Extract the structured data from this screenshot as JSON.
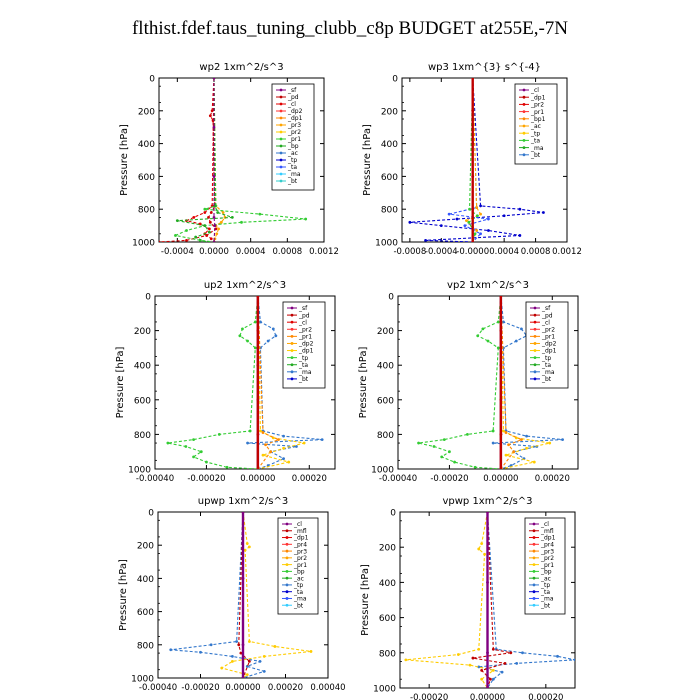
{
  "page_title": "flthist.fdef.taus_tuning_clubb_c8p  BUDGET at255E,-7N",
  "chart_data": [
    {
      "type": "line",
      "title": "wp2   1xm^2/s^3",
      "ylabel": "Pressure [hPa]",
      "xlim": [
        -0.0006,
        0.0012
      ],
      "ylim": [
        1000,
        0
      ],
      "xticks": [
        -0.0004,
        0.0,
        0.0004,
        0.0008,
        0.0012
      ],
      "xticklabels": [
        "-0.0004",
        "0.0000",
        "0.0004",
        "0.0008",
        "0.0012"
      ],
      "yticks": [
        0,
        200,
        400,
        600,
        800,
        1000
      ],
      "legend_position": "top-right",
      "legend": [
        "_sf",
        "_pd",
        "_cl",
        "_dp2",
        "_dp1",
        "_pr3",
        "_pr2",
        "_pr1",
        "_bp",
        "_ac",
        "_tp",
        "_ta",
        "_ma",
        "_bt"
      ],
      "series": [
        {
          "name": "_dp1",
          "color": "#d00000",
          "pressure": [
            0,
            200,
            230,
            260,
            600,
            780,
            820,
            850,
            880,
            920,
            960,
            990,
            1000
          ],
          "values": [
            0,
            -2e-05,
            -4e-05,
            -1e-05,
            0,
            1e-05,
            -3e-05,
            -6e-05,
            -4e-05,
            2e-05,
            -8e-05,
            -0.0003,
            -0.0006
          ]
        },
        {
          "name": "_pr1",
          "color": "#ffa500",
          "pressure": [
            0,
            780,
            820,
            850,
            880,
            900,
            920,
            950,
            980,
            1000
          ],
          "values": [
            0,
            2e-05,
            0.0001,
            0.00012,
            8e-05,
            2e-05,
            5e-05,
            3e-05,
            1e-05,
            0
          ]
        },
        {
          "name": "_dp2",
          "color": "#e00000",
          "pressure": [
            0,
            780,
            820,
            850,
            870,
            890,
            920,
            950,
            980,
            1000
          ],
          "values": [
            0,
            -2e-05,
            -0.0001,
            -0.00022,
            -0.0003,
            -0.00015,
            -5e-05,
            -0.0001,
            -3e-05,
            0
          ]
        },
        {
          "name": "_bp",
          "color": "#33cc33",
          "pressure": [
            0,
            780,
            800,
            830,
            860,
            880,
            900,
            930,
            960,
            990,
            1000
          ],
          "values": [
            0,
            2e-05,
            -0.0001,
            0.0005,
            0.001,
            0.0003,
            -0.0001,
            -0.0003,
            -0.00042,
            -0.00015,
            0
          ]
        },
        {
          "name": "_ac",
          "color": "#22aa22",
          "pressure": [
            0,
            780,
            820,
            850,
            870,
            900,
            940,
            970,
            1000
          ],
          "values": [
            0,
            1e-05,
            4e-05,
            0.0002,
            -0.0004,
            -0.0001,
            -5e-05,
            -0.0002,
            -0.0001
          ]
        },
        {
          "name": "_sf",
          "color": "#800080",
          "pressure": [
            0,
            300,
            600,
            850,
            900,
            1000
          ],
          "values": [
            0,
            0,
            0,
            0,
            1e-05,
            0
          ]
        }
      ]
    },
    {
      "type": "line",
      "title": "wp3   1xm^{3} s^{-4}",
      "ylabel": "Pressure [hPa]",
      "xlim": [
        -0.0009,
        0.0012
      ],
      "ylim": [
        1000,
        0
      ],
      "xticks": [
        -0.0008,
        -0.0004,
        0.0,
        0.0004,
        0.0008,
        0.0012
      ],
      "xticklabels": [
        "-0.0008",
        "-0.0004",
        "-0.0000",
        "0.0004",
        "0.0008",
        "0.0012"
      ],
      "yticks": [
        0,
        200,
        400,
        600,
        800,
        1000
      ],
      "legend_position": "top-right",
      "legend": [
        "_cl",
        "_dp1",
        "_pr2",
        "_pr1",
        "_bp1",
        "_ac",
        "_tp",
        "_ta",
        "_ma",
        "_bt"
      ],
      "series": [
        {
          "name": "_tp",
          "color": "#0000cc",
          "pressure": [
            0,
            780,
            800,
            820,
            840,
            860,
            880,
            900,
            930,
            960,
            990,
            1000
          ],
          "values": [
            0,
            0.0001,
            0.0006,
            0.0009,
            0.0004,
            -0.0002,
            -0.0008,
            -0.0004,
            0.0002,
            0.0006,
            -0.0006,
            0
          ]
        },
        {
          "name": "_ta",
          "color": "#3355ff",
          "pressure": [
            0,
            790,
            830,
            860,
            900,
            950,
            1000
          ],
          "values": [
            0,
            5e-05,
            -0.0003,
            0.0002,
            -0.0001,
            0.0001,
            0
          ]
        },
        {
          "name": "_pr1",
          "color": "#ffa500",
          "pressure": [
            0,
            790,
            830,
            870,
            930,
            1000
          ],
          "values": [
            0,
            5e-05,
            0.0001,
            -8e-05,
            5e-05,
            0
          ]
        },
        {
          "name": "_bp1",
          "color": "#33cc33",
          "pressure": [
            0,
            800,
            840,
            880,
            950,
            1000
          ],
          "values": [
            0,
            -4e-05,
            6e-05,
            -5e-05,
            3e-05,
            0
          ]
        },
        {
          "name": "_cl",
          "color": "#c00000",
          "pressure": [
            0,
            200,
            400,
            600,
            800,
            1000
          ],
          "values": [
            0,
            0,
            0,
            0,
            0,
            0
          ]
        }
      ]
    },
    {
      "type": "line",
      "title": "up2   1xm^2/s^3",
      "ylabel": "Pressure [hPa]",
      "xlim": [
        -0.0004,
        0.0003
      ],
      "ylim": [
        1000,
        0
      ],
      "xticks": [
        -0.0004,
        -0.0002,
        0.0,
        0.0002
      ],
      "xticklabels": [
        "-0.00040",
        "-0.00020",
        "0.00000",
        "0.00020"
      ],
      "yticks": [
        0,
        200,
        400,
        600,
        800,
        1000
      ],
      "legend_position": "top-right",
      "legend": [
        "_sf",
        "_pd",
        "_cl",
        "_pr2",
        "_pr1",
        "_dp2",
        "_dp1",
        "_tp",
        "_ta",
        "_ma",
        "_bt"
      ],
      "series": [
        {
          "name": "_tp",
          "color": "#3377cc",
          "pressure": [
            0,
            150,
            190,
            230,
            260,
            300,
            780,
            810,
            830,
            850,
            870,
            900,
            940,
            980,
            1000
          ],
          "values": [
            0,
            1e-05,
            6e-05,
            7e-05,
            4e-05,
            1e-05,
            2e-05,
            0.0001,
            0.00025,
            -4e-05,
            0.00015,
            5e-05,
            0.0001,
            4e-05,
            0
          ]
        },
        {
          "name": "_pr1",
          "color": "#ffcc00",
          "pressure": [
            0,
            780,
            820,
            850,
            880,
            920,
            960,
            1000
          ],
          "values": [
            0,
            1e-05,
            6e-05,
            0.00018,
            0.0001,
            2e-05,
            0.00012,
            0
          ]
        },
        {
          "name": "_dp2",
          "color": "#ff8800",
          "pressure": [
            0,
            790,
            830,
            860,
            900,
            1000
          ],
          "values": [
            0,
            2e-05,
            8e-05,
            3e-05,
            5e-05,
            0
          ]
        },
        {
          "name": "_dp1",
          "color": "#33cc33",
          "pressure": [
            0,
            150,
            190,
            230,
            260,
            300,
            780,
            800,
            830,
            850,
            870,
            900,
            930,
            960,
            990,
            1000
          ],
          "values": [
            0,
            -1e-05,
            -6e-05,
            -7e-05,
            -4e-05,
            -1e-05,
            -3e-05,
            -0.00015,
            -0.00025,
            -0.00035,
            -0.00028,
            -0.00022,
            -0.00025,
            -0.0002,
            -0.00012,
            0
          ]
        },
        {
          "name": "_sf",
          "color": "#800080",
          "pressure": [
            0,
            400,
            800,
            1000
          ],
          "values": [
            0,
            0,
            0,
            0
          ]
        },
        {
          "name": "_cl",
          "color": "#c00000",
          "pressure": [
            0,
            200,
            400,
            600,
            800,
            1000
          ],
          "values": [
            0,
            0,
            0,
            0,
            0,
            0
          ]
        }
      ]
    },
    {
      "type": "line",
      "title": "vp2   1xm^2/s^3",
      "ylabel": "Pressure [hPa]",
      "xlim": [
        -0.0004,
        0.0003
      ],
      "ylim": [
        1000,
        0
      ],
      "xticks": [
        -0.0004,
        -0.0002,
        0.0,
        0.0002
      ],
      "xticklabels": [
        "-0.00040",
        "-0.00020",
        "0.00000",
        "0.00020"
      ],
      "yticks": [
        0,
        200,
        400,
        600,
        800,
        1000
      ],
      "legend_position": "top-right",
      "legend": [
        "_sf",
        "_pd",
        "_cl",
        "_pr2",
        "_pr1",
        "_dp2",
        "_dp1",
        "_tp",
        "_ta",
        "_ma",
        "_bt"
      ],
      "series": [
        {
          "name": "_tp",
          "color": "#3377cc",
          "pressure": [
            0,
            150,
            190,
            230,
            260,
            300,
            780,
            810,
            830,
            850,
            870,
            900,
            940,
            980,
            1000
          ],
          "values": [
            0,
            1e-05,
            8e-05,
            0.0001,
            6e-05,
            1e-05,
            2e-05,
            0.0001,
            0.00024,
            -3e-05,
            0.00014,
            5e-05,
            9e-05,
            4e-05,
            0
          ]
        },
        {
          "name": "_pr1",
          "color": "#ffcc00",
          "pressure": [
            0,
            780,
            820,
            850,
            880,
            920,
            960,
            1000
          ],
          "values": [
            0,
            1e-05,
            6e-05,
            0.00019,
            0.0001,
            2e-05,
            0.00013,
            0
          ]
        },
        {
          "name": "_dp2",
          "color": "#ff8800",
          "pressure": [
            0,
            790,
            830,
            860,
            900,
            1000
          ],
          "values": [
            0,
            2e-05,
            8e-05,
            3e-05,
            5e-05,
            0
          ]
        },
        {
          "name": "_dp1",
          "color": "#33cc33",
          "pressure": [
            0,
            150,
            190,
            230,
            260,
            300,
            780,
            800,
            830,
            850,
            870,
            900,
            930,
            960,
            990,
            1000
          ],
          "values": [
            0,
            -1e-05,
            -7e-05,
            -9e-05,
            -5e-05,
            -1e-05,
            -3e-05,
            -0.00013,
            -0.00022,
            -0.00032,
            -0.00026,
            -0.0002,
            -0.00023,
            -0.00018,
            -0.0001,
            0
          ]
        },
        {
          "name": "_sf",
          "color": "#800080",
          "pressure": [
            0,
            400,
            800,
            1000
          ],
          "values": [
            0,
            0,
            0,
            0
          ]
        },
        {
          "name": "_cl",
          "color": "#c00000",
          "pressure": [
            0,
            200,
            400,
            600,
            800,
            1000
          ],
          "values": [
            0,
            0,
            0,
            0,
            0,
            0
          ]
        }
      ]
    },
    {
      "type": "line",
      "title": "upwp   1xm^2/s^3",
      "ylabel": "Pressure [hPa]",
      "xlim": [
        -0.0004,
        0.0004
      ],
      "ylim": [
        1000,
        0
      ],
      "xticks": [
        -0.0004,
        -0.0002,
        0.0,
        0.0002,
        0.0004
      ],
      "xticklabels": [
        "-0.00040",
        "-0.00020",
        "0.00000",
        "0.00020",
        "0.00040"
      ],
      "yticks": [
        0,
        200,
        400,
        600,
        800,
        1000
      ],
      "legend_position": "top-right",
      "legend": [
        "_cl",
        "_mfl",
        "_dp1",
        "_pr4",
        "_pr3",
        "_pr2",
        "_pr1",
        "_bp",
        "_ac",
        "_tp",
        "_ta",
        "_ma",
        "_bt"
      ],
      "series": [
        {
          "name": "_tp",
          "color": "#3377cc",
          "pressure": [
            0,
            780,
            800,
            830,
            845,
            870,
            900,
            930,
            960,
            1000
          ],
          "values": [
            0,
            -3e-05,
            -0.00015,
            -0.00034,
            -0.0002,
            -5e-05,
            8e-05,
            2e-05,
            0.0001,
            0
          ]
        },
        {
          "name": "_pr1",
          "color": "#ffcc00",
          "pressure": [
            0,
            190,
            210,
            230,
            780,
            810,
            840,
            870,
            900,
            940,
            980,
            1000
          ],
          "values": [
            0,
            2e-05,
            3e-05,
            1e-05,
            3e-05,
            0.00015,
            0.00032,
            0.0001,
            -5e-05,
            -0.0001,
            2e-05,
            0
          ]
        },
        {
          "name": "_dp1",
          "color": "#c00000",
          "pressure": [
            0,
            800,
            850,
            900,
            1000
          ],
          "values": [
            0,
            -2e-05,
            -1e-05,
            3e-05,
            0
          ]
        },
        {
          "name": "_mfl",
          "color": "#800080",
          "pressure": [
            0,
            400,
            800,
            1000
          ],
          "values": [
            0,
            0,
            0,
            0
          ]
        }
      ]
    },
    {
      "type": "line",
      "title": "vpwp   1xm^2/s^3",
      "ylabel": "Pressure [hPa]",
      "xlim": [
        -0.0003,
        0.0003
      ],
      "ylim": [
        1000,
        0
      ],
      "xticks": [
        -0.0002,
        0.0,
        0.0002
      ],
      "xticklabels": [
        "-0.00020",
        "0.00000",
        "0.00020"
      ],
      "yticks": [
        0,
        200,
        400,
        600,
        800,
        1000
      ],
      "legend_position": "top-right",
      "legend": [
        "_cl",
        "_mfl",
        "_dp1",
        "_pr4",
        "_pr3",
        "_pr2",
        "_pr1",
        "_bp",
        "_ac",
        "_tp",
        "_ta",
        "_ma",
        "_bt"
      ],
      "series": [
        {
          "name": "_tp",
          "color": "#3377cc",
          "pressure": [
            0,
            780,
            800,
            820,
            840,
            860,
            880,
            910,
            950,
            1000
          ],
          "values": [
            0,
            3e-05,
            0.00012,
            0.00024,
            0.0003,
            0.0001,
            -3e-05,
            5e-05,
            2e-05,
            0
          ]
        },
        {
          "name": "_pr1",
          "color": "#ffcc00",
          "pressure": [
            0,
            180,
            210,
            240,
            780,
            810,
            840,
            870,
            900,
            950,
            1000
          ],
          "values": [
            0,
            -2e-05,
            -3e-05,
            -1e-05,
            -3e-05,
            -0.0001,
            -0.00028,
            -6e-05,
            2e-05,
            -2e-05,
            0
          ]
        },
        {
          "name": "_dp1",
          "color": "#c00000",
          "pressure": [
            0,
            780,
            800,
            830,
            860,
            900,
            950,
            1000
          ],
          "values": [
            0,
            2e-05,
            8e-05,
            -5e-05,
            6e-05,
            -2e-05,
            1e-05,
            0
          ]
        },
        {
          "name": "_mfl",
          "color": "#800080",
          "pressure": [
            0,
            400,
            800,
            1000
          ],
          "values": [
            0,
            0,
            0,
            0
          ]
        }
      ]
    }
  ]
}
